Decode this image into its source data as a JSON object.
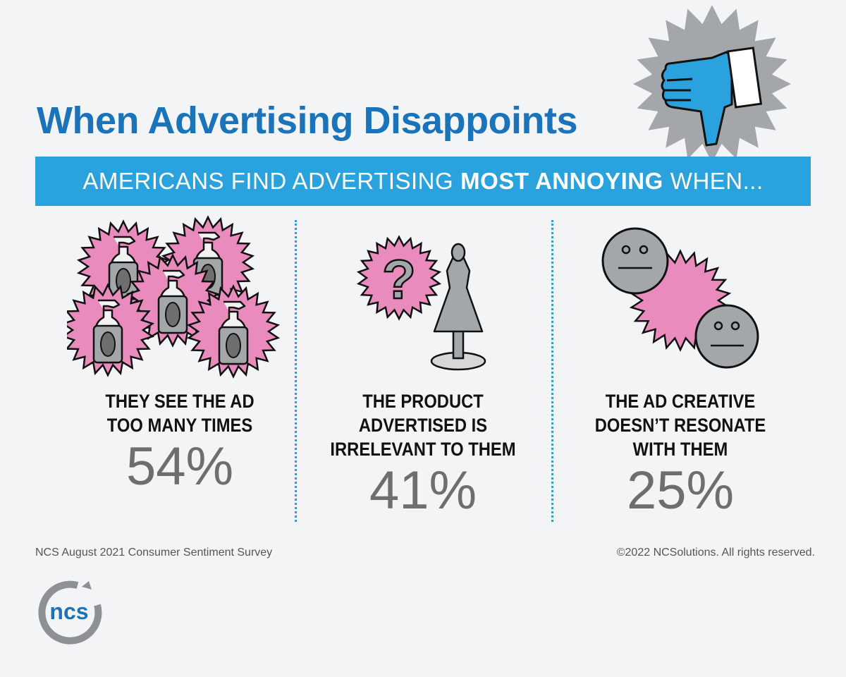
{
  "title": "When Advertising Disappoints",
  "banner": {
    "prefix": "AMERICANS FIND ADVERTISING",
    "emphasis": "MOST ANNOYING",
    "suffix": "WHEN..."
  },
  "reasons": [
    {
      "lines": [
        "THEY SEE THE AD",
        "TOO MANY TIMES"
      ],
      "percent": "54%",
      "icon": "spray-bottles-icon"
    },
    {
      "lines": [
        "THE PRODUCT",
        "ADVERTISED IS",
        "IRRELEVANT TO THEM"
      ],
      "percent": "41%",
      "icon": "question-mannequin-icon"
    },
    {
      "lines": [
        "THE AD CREATIVE",
        "DOESN’T RESONATE",
        "WITH THEM"
      ],
      "percent": "25%",
      "icon": "neutral-faces-icon"
    }
  ],
  "footer": {
    "source": "NCS August 2021 Consumer Sentiment Survey",
    "copyright": "©2022 NCSolutions. All rights reserved."
  },
  "logo_text": "ncs",
  "colors": {
    "title_blue": "#1b74b9",
    "banner_blue": "#2aa2dd",
    "pink": "#e98bbd",
    "gray": "#a4a7aa",
    "percent_gray": "#6e6e6e"
  }
}
